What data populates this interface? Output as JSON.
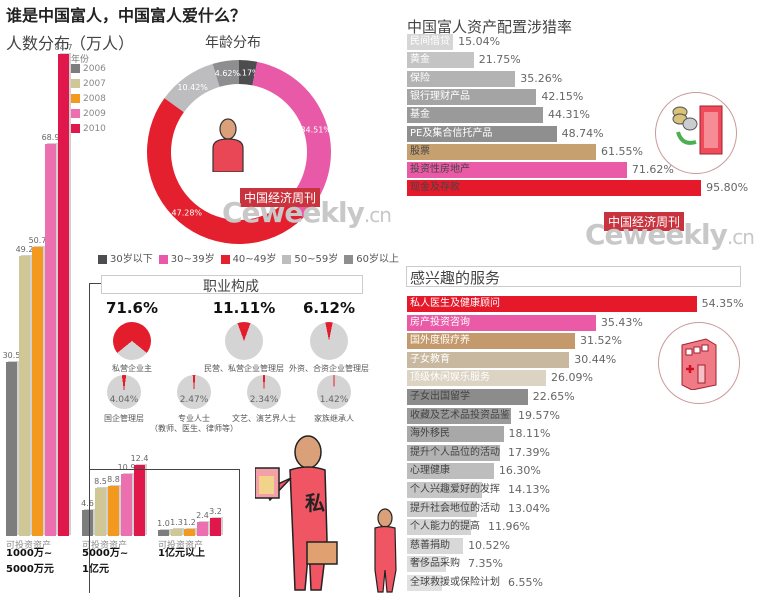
{
  "title": "谁是中国富人，中国富人爱什么？",
  "watermark": {
    "cn": "中国经济周刊",
    "en_main": "Ceweekly",
    "en_suffix": ".cn"
  },
  "chart_data": [
    {
      "type": "bar",
      "title": "人数分布（万人）",
      "legend_title": "年份",
      "categories": [
        "可投资资产 1000万~5000万元",
        "可投资资产 5000万~1亿元",
        "可投资资产 1亿元以上"
      ],
      "category_lines": [
        [
          "可投资资产",
          "1000万~",
          "5000万元"
        ],
        [
          "可投资资产",
          "5000万~",
          "1亿元"
        ],
        [
          "可投资资产",
          "1亿元",
          "以上"
        ]
      ],
      "series": [
        {
          "name": "2006",
          "color": "#7d7d7d",
          "values": [
            30.5,
            4.6,
            1.0
          ]
        },
        {
          "name": "2007",
          "color": "#cfc796",
          "values": [
            49.2,
            8.5,
            1.3
          ]
        },
        {
          "name": "2008",
          "color": "#f39a1e",
          "values": [
            50.7,
            8.8,
            1.2
          ]
        },
        {
          "name": "2009",
          "color": "#ec6fb0",
          "values": [
            68.9,
            10.9,
            2.4
          ]
        },
        {
          "name": "2010",
          "color": "#e0174a",
          "values": [
            84.7,
            12.4,
            3.2
          ]
        }
      ]
    },
    {
      "type": "pie",
      "title": "年龄分布",
      "labels": [
        "30岁以下",
        "30~39岁",
        "40~49岁",
        "50~59岁",
        "60岁以上"
      ],
      "values": [
        3.17,
        34.51,
        47.28,
        10.42,
        4.62
      ],
      "value_labels": [
        "3.17%",
        "34.51%",
        "47.28%",
        "10.42%",
        "4.62%"
      ],
      "colors": [
        "#4d4d4f",
        "#e85aa8",
        "#e4202e",
        "#bdbdbf",
        "#8e8e90"
      ]
    },
    {
      "type": "pie",
      "title": "职业构成",
      "labels": [
        "私营企业主",
        "民营、私营企业管理层",
        "外资、合资企业管理层",
        "国企管理层",
        "专业人士（教师、医生、律师等）",
        "文艺、演艺界人士",
        "家族继承人"
      ],
      "values": [
        71.6,
        11.11,
        6.12,
        4.04,
        2.47,
        2.34,
        1.42
      ],
      "value_labels": [
        "71.6%",
        "11.11%",
        "6.12%",
        "4.04%",
        "2.47%",
        "2.34%",
        "1.42%"
      ]
    },
    {
      "type": "bar",
      "orientation": "horizontal",
      "title": "中国富人资产配置涉猎率",
      "categories": [
        "民间借贷",
        "黄金",
        "保险",
        "银行理财产品",
        "基金",
        "PE及集合信托产品",
        "股票",
        "投资性房地产",
        "现金及存款"
      ],
      "values": [
        15.04,
        21.75,
        35.26,
        42.15,
        44.31,
        48.74,
        61.55,
        71.62,
        95.8
      ],
      "value_labels": [
        "15.04%",
        "21.75%",
        "35.26%",
        "42.15%",
        "44.31%",
        "48.74%",
        "61.55%",
        "71.62%",
        "95.80%"
      ],
      "colors": [
        "#d6d6d6",
        "#c4c4c4",
        "#b3b3b3",
        "#a4a4a4",
        "#9a9a9a",
        "#8f8f8f",
        "#c6a06f",
        "#ea5aa6",
        "#e6192b"
      ]
    },
    {
      "type": "bar",
      "orientation": "horizontal",
      "title": "感兴趣的服务",
      "categories": [
        "私人医生及健康顾问",
        "房产投资咨询",
        "国外度假疗养",
        "子女教育",
        "顶级休闲娱乐服务",
        "子女出国留学",
        "收藏及艺术品投资品鉴",
        "海外移民",
        "提升个人品位的活动",
        "心理健康",
        "个人兴趣爱好的发挥",
        "提升社会地位的活动",
        "个人能力的提高",
        "慈善捐助",
        "奢侈品采购",
        "全球救援或保险计划"
      ],
      "values": [
        54.35,
        35.43,
        31.52,
        30.44,
        26.09,
        22.65,
        19.57,
        18.11,
        17.39,
        16.3,
        14.13,
        13.04,
        11.96,
        10.52,
        7.35,
        6.55
      ],
      "value_labels": [
        "54.35%",
        "35.43%",
        "31.52%",
        "30.44%",
        "26.09%",
        "22.65%",
        "19.57%",
        "18.11%",
        "17.39%",
        "16.30%",
        "14.13%",
        "13.04%",
        "11.96%",
        "10.52%",
        "7.35%",
        "6.55%"
      ],
      "colors": [
        "#e6192b",
        "#ea5aa6",
        "#c49a6c",
        "#c8b89f",
        "#ddd3c3",
        "#8c8c8c",
        "#9b9b9b",
        "#a8a8a8",
        "#b2b2b2",
        "#bdbdbd",
        "#c6c6c6",
        "#cdcdcd",
        "#d3d3d3",
        "#d8d8d8",
        "#dddddd",
        "#e1e1e1"
      ]
    }
  ]
}
